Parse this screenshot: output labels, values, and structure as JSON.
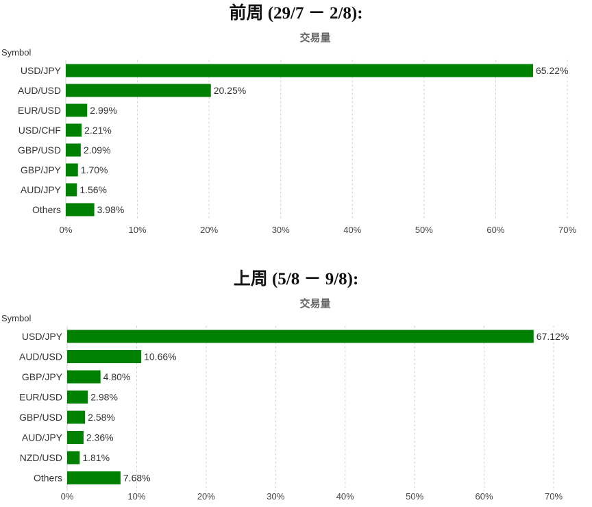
{
  "charts": [
    {
      "heading": "前周 (29/7 － 2/8):",
      "chart_data": {
        "type": "bar",
        "orientation": "horizontal",
        "title": "交易量",
        "ylabel": "Symbol",
        "xlabel": "",
        "categories": [
          "USD/JPY",
          "AUD/USD",
          "EUR/USD",
          "USD/CHF",
          "GBP/USD",
          "GBP/JPY",
          "AUD/JPY",
          "Others"
        ],
        "values": [
          65.22,
          20.25,
          2.99,
          2.21,
          2.09,
          1.7,
          1.56,
          3.98
        ],
        "value_labels": [
          "65.22%",
          "20.25%",
          "2.99%",
          "2.21%",
          "2.09%",
          "1.70%",
          "1.56%",
          "3.98%"
        ],
        "xlim": [
          0,
          70
        ],
        "xticks": [
          0,
          10,
          20,
          30,
          40,
          50,
          60,
          70
        ],
        "xtick_labels": [
          "0%",
          "10%",
          "20%",
          "30%",
          "40%",
          "50%",
          "60%",
          "70%"
        ],
        "grid": "vertical dashed",
        "bar_color": "#008000"
      }
    },
    {
      "heading": "上周 (5/8 － 9/8):",
      "chart_data": {
        "type": "bar",
        "orientation": "horizontal",
        "title": "交易量",
        "ylabel": "Symbol",
        "xlabel": "",
        "categories": [
          "USD/JPY",
          "AUD/USD",
          "GBP/JPY",
          "EUR/USD",
          "GBP/USD",
          "AUD/JPY",
          "NZD/USD",
          "Others"
        ],
        "values": [
          67.12,
          10.66,
          4.8,
          2.98,
          2.58,
          2.36,
          1.81,
          7.68
        ],
        "value_labels": [
          "67.12%",
          "10.66%",
          "4.80%",
          "2.98%",
          "2.58%",
          "2.36%",
          "1.81%",
          "7.68%"
        ],
        "xlim": [
          0,
          70
        ],
        "xticks": [
          0,
          10,
          20,
          30,
          40,
          50,
          60,
          70
        ],
        "xtick_labels": [
          "0%",
          "10%",
          "20%",
          "30%",
          "40%",
          "50%",
          "60%",
          "70%"
        ],
        "grid": "vertical dashed",
        "bar_color": "#008000"
      }
    }
  ]
}
